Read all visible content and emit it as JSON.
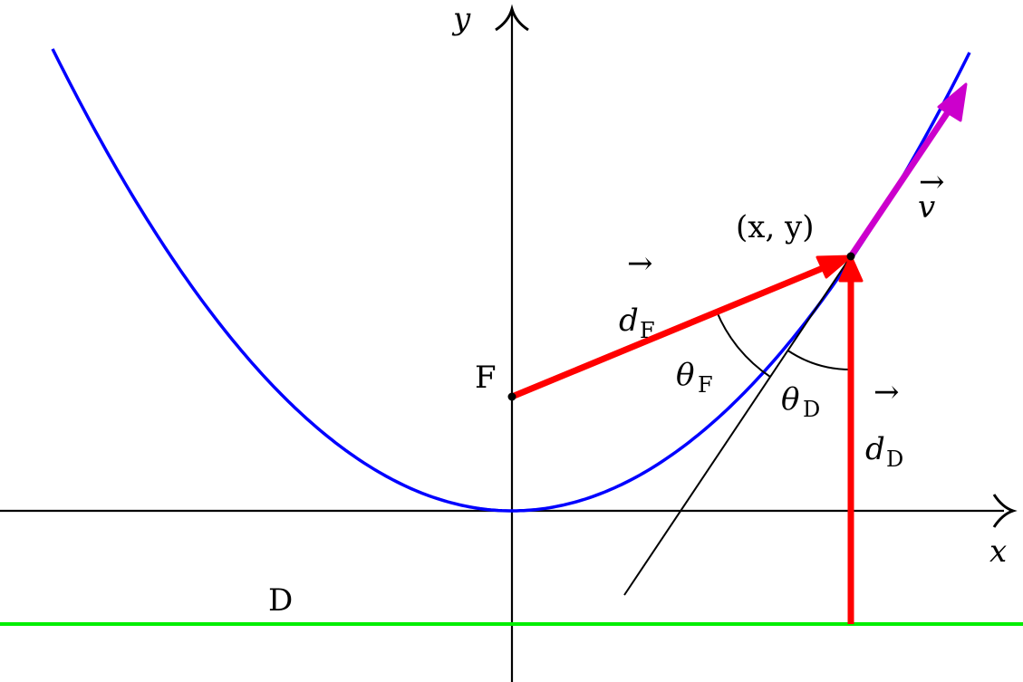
{
  "labels": {
    "x_axis": "x",
    "y_axis": "y",
    "focus": "F",
    "directrix": "D",
    "point": "(x, y)",
    "velocity": "v",
    "d_focus": "d",
    "d_focus_sub": "F",
    "d_directrix": "d",
    "d_directrix_sub": "D",
    "theta_focus": "θ",
    "theta_focus_sub": "F",
    "theta_directrix": "θ",
    "theta_directrix_sub": "D"
  },
  "colors": {
    "parabola": "#0000ff",
    "directrix": "#00ee00",
    "distance_vectors": "#ff0000",
    "velocity_vector": "#cc00cc",
    "axes": "#000000"
  }
}
